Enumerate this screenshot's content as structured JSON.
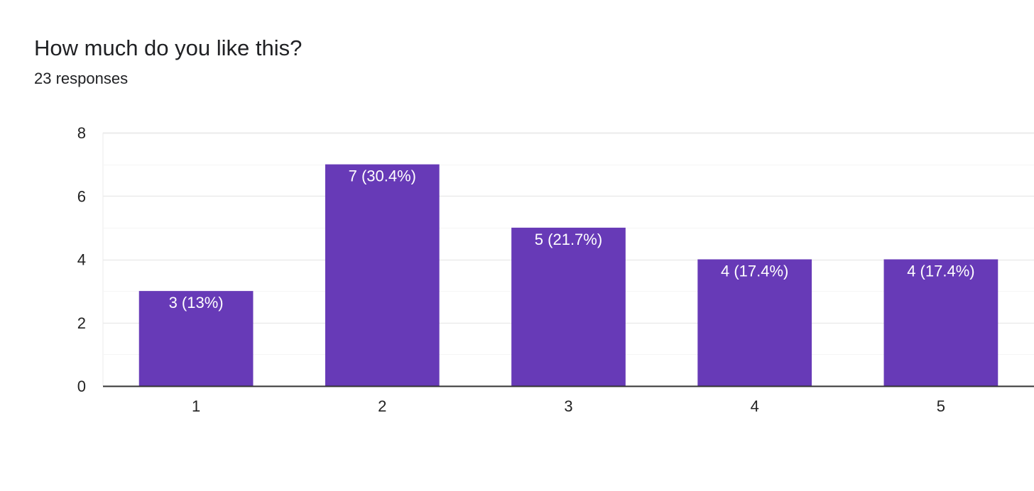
{
  "question": {
    "title": "How much do you like this?",
    "responses_label": "23 responses"
  },
  "colors": {
    "bar": "#673ab7",
    "gridline": "#ebebeb",
    "minor_gridline": "#f5f5f5",
    "baseline": "#333333",
    "bar_label": "#ffffff",
    "tick_label": "#222222"
  },
  "chart_data": {
    "type": "bar",
    "title": "",
    "xlabel": "",
    "ylabel": "",
    "categories": [
      "1",
      "2",
      "3",
      "4",
      "5"
    ],
    "values": [
      3,
      7,
      5,
      4,
      4
    ],
    "data_labels": [
      "3 (13%)",
      "7 (30.4%)",
      "5 (21.7%)",
      "4 (17.4%)",
      "4 (17.4%)"
    ],
    "ylim": [
      0,
      8
    ],
    "yticks": [
      0,
      2,
      4,
      6,
      8
    ],
    "grid": true,
    "legend": "none"
  }
}
